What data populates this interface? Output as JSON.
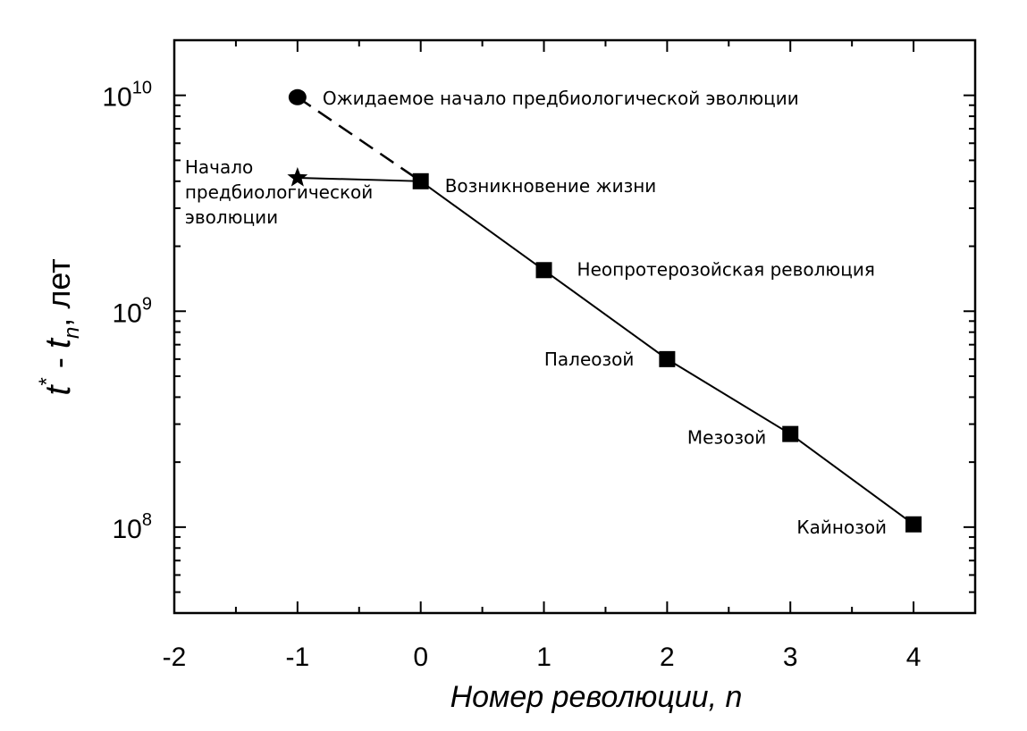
{
  "chart_data": {
    "type": "scatter",
    "title": "",
    "xlabel": "Номер революции, n",
    "ylabel": {
      "var1": "t",
      "sup": "*",
      "dash": " - ",
      "var2": "t",
      "sub": "n",
      "unit": ", лет"
    },
    "xlim": [
      -2,
      4.5
    ],
    "ylim": [
      40000000,
      18000000000
    ],
    "yscale": "log",
    "xticks": [
      -2,
      -1,
      0,
      1,
      2,
      3,
      4
    ],
    "yticks": [
      {
        "value": 100000000,
        "base": "10",
        "exp": "8"
      },
      {
        "value": 1000000000,
        "base": "10",
        "exp": "9"
      },
      {
        "value": 10000000000,
        "base": "10",
        "exp": "10"
      }
    ],
    "grid": false,
    "series": [
      {
        "marker": "square",
        "line": "solid",
        "points": [
          {
            "x": 0,
            "y": 4000000000,
            "label": "Возникновение жизни"
          },
          {
            "x": 1,
            "y": 1550000000,
            "label": "Неопротерозойская революция"
          },
          {
            "x": 2,
            "y": 600000000,
            "label": "Палеозой"
          },
          {
            "x": 3,
            "y": 270000000,
            "label": "Мезозой"
          },
          {
            "x": 4,
            "y": 103000000,
            "label": "Кайнозой"
          }
        ]
      },
      {
        "marker": "star",
        "line": "solid",
        "points": [
          {
            "x": -1,
            "y": 4150000000,
            "label": [
              "Начало",
              "предбиологической",
              "эволюции"
            ]
          },
          {
            "x": 0,
            "y": 4000000000
          }
        ]
      },
      {
        "marker": "circle",
        "line": "dashed",
        "points": [
          {
            "x": -1,
            "y": 9800000000,
            "label": "Ожидаемое начало предбиологической эволюции"
          },
          {
            "x": 0,
            "y": 4000000000
          }
        ]
      }
    ]
  }
}
